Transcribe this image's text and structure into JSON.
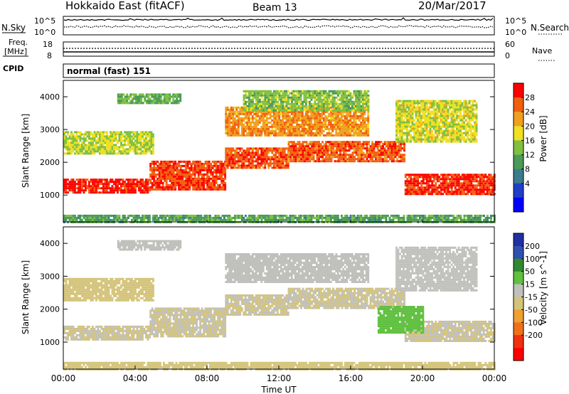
{
  "header": {
    "title": "Hokkaido East (fitACF)",
    "beam": "Beam 13",
    "date": "20/Mar/2017"
  },
  "noise_panel": {
    "left_label": "N.Sky",
    "left_ticks": [
      "10^5",
      "10^0"
    ],
    "right_ticks": [
      "10^5",
      "10^0"
    ],
    "right_label": "N.Search"
  },
  "freq_panel": {
    "left_label_line1": "Freq.",
    "left_label_line2": "[MHz]",
    "left_ticks": [
      "18",
      "8"
    ],
    "right_ticks": [
      "60",
      "0"
    ],
    "right_label": "Nave"
  },
  "cpid_panel": {
    "label": "CPID",
    "mode": "normal (fast) 151"
  },
  "x_axis": {
    "ticks": [
      "00:00",
      "04:00",
      "08:00",
      "12:00",
      "16:00",
      "20:00",
      "00:00"
    ],
    "label": "Time UT"
  },
  "chart_data": [
    {
      "type": "heatmap",
      "variable": "power",
      "x": "time UT (hours)",
      "xlim": [
        0,
        24
      ],
      "ylabel": "Slant Range [km]",
      "ylim": [
        180,
        4500
      ],
      "y_ticks": [
        "1000",
        "2000",
        "3000",
        "4000"
      ],
      "colorbar_label": "Power [dB]",
      "colorbar_ticks": [
        "28",
        "24",
        "20",
        "16",
        "12",
        "8",
        "4"
      ],
      "colorbar_range": [
        0,
        32
      ],
      "colors": [
        "#0000ff",
        "#203ec8",
        "#3a7c8c",
        "#4a9a58",
        "#7fc040",
        "#f0e020",
        "#f0a020",
        "#f06010",
        "#ff0000"
      ],
      "regions": [
        {
          "t0": 0,
          "t1": 4.8,
          "r0": 1050,
          "r1": 1500,
          "level": 30
        },
        {
          "t0": 4.8,
          "t1": 9,
          "r0": 1150,
          "r1": 2050,
          "level": 28
        },
        {
          "t0": 9,
          "t1": 12.5,
          "r0": 1850,
          "r1": 2450,
          "level": 27
        },
        {
          "t0": 12.5,
          "t1": 19,
          "r0": 2050,
          "r1": 2650,
          "level": 27
        },
        {
          "t0": 19,
          "t1": 24,
          "r0": 1050,
          "r1": 1650,
          "level": 29
        },
        {
          "t0": 0,
          "t1": 5,
          "r0": 2250,
          "r1": 2950,
          "level": 18
        },
        {
          "t0": 9,
          "t1": 17,
          "r0": 2800,
          "r1": 3700,
          "level": 24
        },
        {
          "t0": 10,
          "t1": 17,
          "r0": 3600,
          "r1": 4200,
          "level": 16
        },
        {
          "t0": 18.5,
          "t1": 23,
          "r0": 2600,
          "r1": 3900,
          "level": 19
        },
        {
          "t0": 3,
          "t1": 6.5,
          "r0": 3800,
          "r1": 4100,
          "level": 14
        },
        {
          "t0": 0,
          "t1": 24,
          "r0": 200,
          "r1": 400,
          "level": 13
        }
      ]
    },
    {
      "type": "heatmap",
      "variable": "velocity",
      "x": "time UT (hours)",
      "xlim": [
        0,
        24
      ],
      "ylabel": "Slant Range [km]",
      "ylim": [
        180,
        4500
      ],
      "y_ticks": [
        "1000",
        "2000",
        "3000",
        "4000"
      ],
      "colorbar_label": "Velocity [m s^-1]",
      "colorbar_ticks": [
        "200",
        "100",
        "50",
        "15",
        "-15",
        "-50",
        "-100",
        "-200"
      ],
      "colorbar_range": [
        -250,
        250
      ],
      "colors": [
        "#ff0000",
        "#f03010",
        "#f07018",
        "#f0a030",
        "#d4c47a",
        "#c0c0bc",
        "#60c040",
        "#308830",
        "#3050b0",
        "#2030a0"
      ],
      "regions": [
        {
          "t0": 0,
          "t1": 4.8,
          "r0": 1050,
          "r1": 1500,
          "level": 0
        },
        {
          "t0": 4.8,
          "t1": 9,
          "r0": 1150,
          "r1": 2050,
          "level": 0
        },
        {
          "t0": 9,
          "t1": 12.5,
          "r0": 1850,
          "r1": 2450,
          "level": 0
        },
        {
          "t0": 12.5,
          "t1": 19,
          "r0": 2050,
          "r1": 2650,
          "level": 0
        },
        {
          "t0": 19,
          "t1": 24,
          "r0": 1050,
          "r1": 1650,
          "level": 0
        },
        {
          "t0": 17.5,
          "t1": 20,
          "r0": 1300,
          "r1": 2100,
          "level": 60
        },
        {
          "t0": 0,
          "t1": 5,
          "r0": 2250,
          "r1": 2950,
          "level": -20
        },
        {
          "t0": 9,
          "t1": 17,
          "r0": 2800,
          "r1": 3700,
          "level": 10
        },
        {
          "t0": 18.5,
          "t1": 23,
          "r0": 2600,
          "r1": 3900,
          "level": 40
        },
        {
          "t0": 3,
          "t1": 6.5,
          "r0": 3800,
          "r1": 4100,
          "level": 30
        },
        {
          "t0": 0,
          "t1": 24,
          "r0": 200,
          "r1": 400,
          "level": -30
        }
      ]
    }
  ]
}
